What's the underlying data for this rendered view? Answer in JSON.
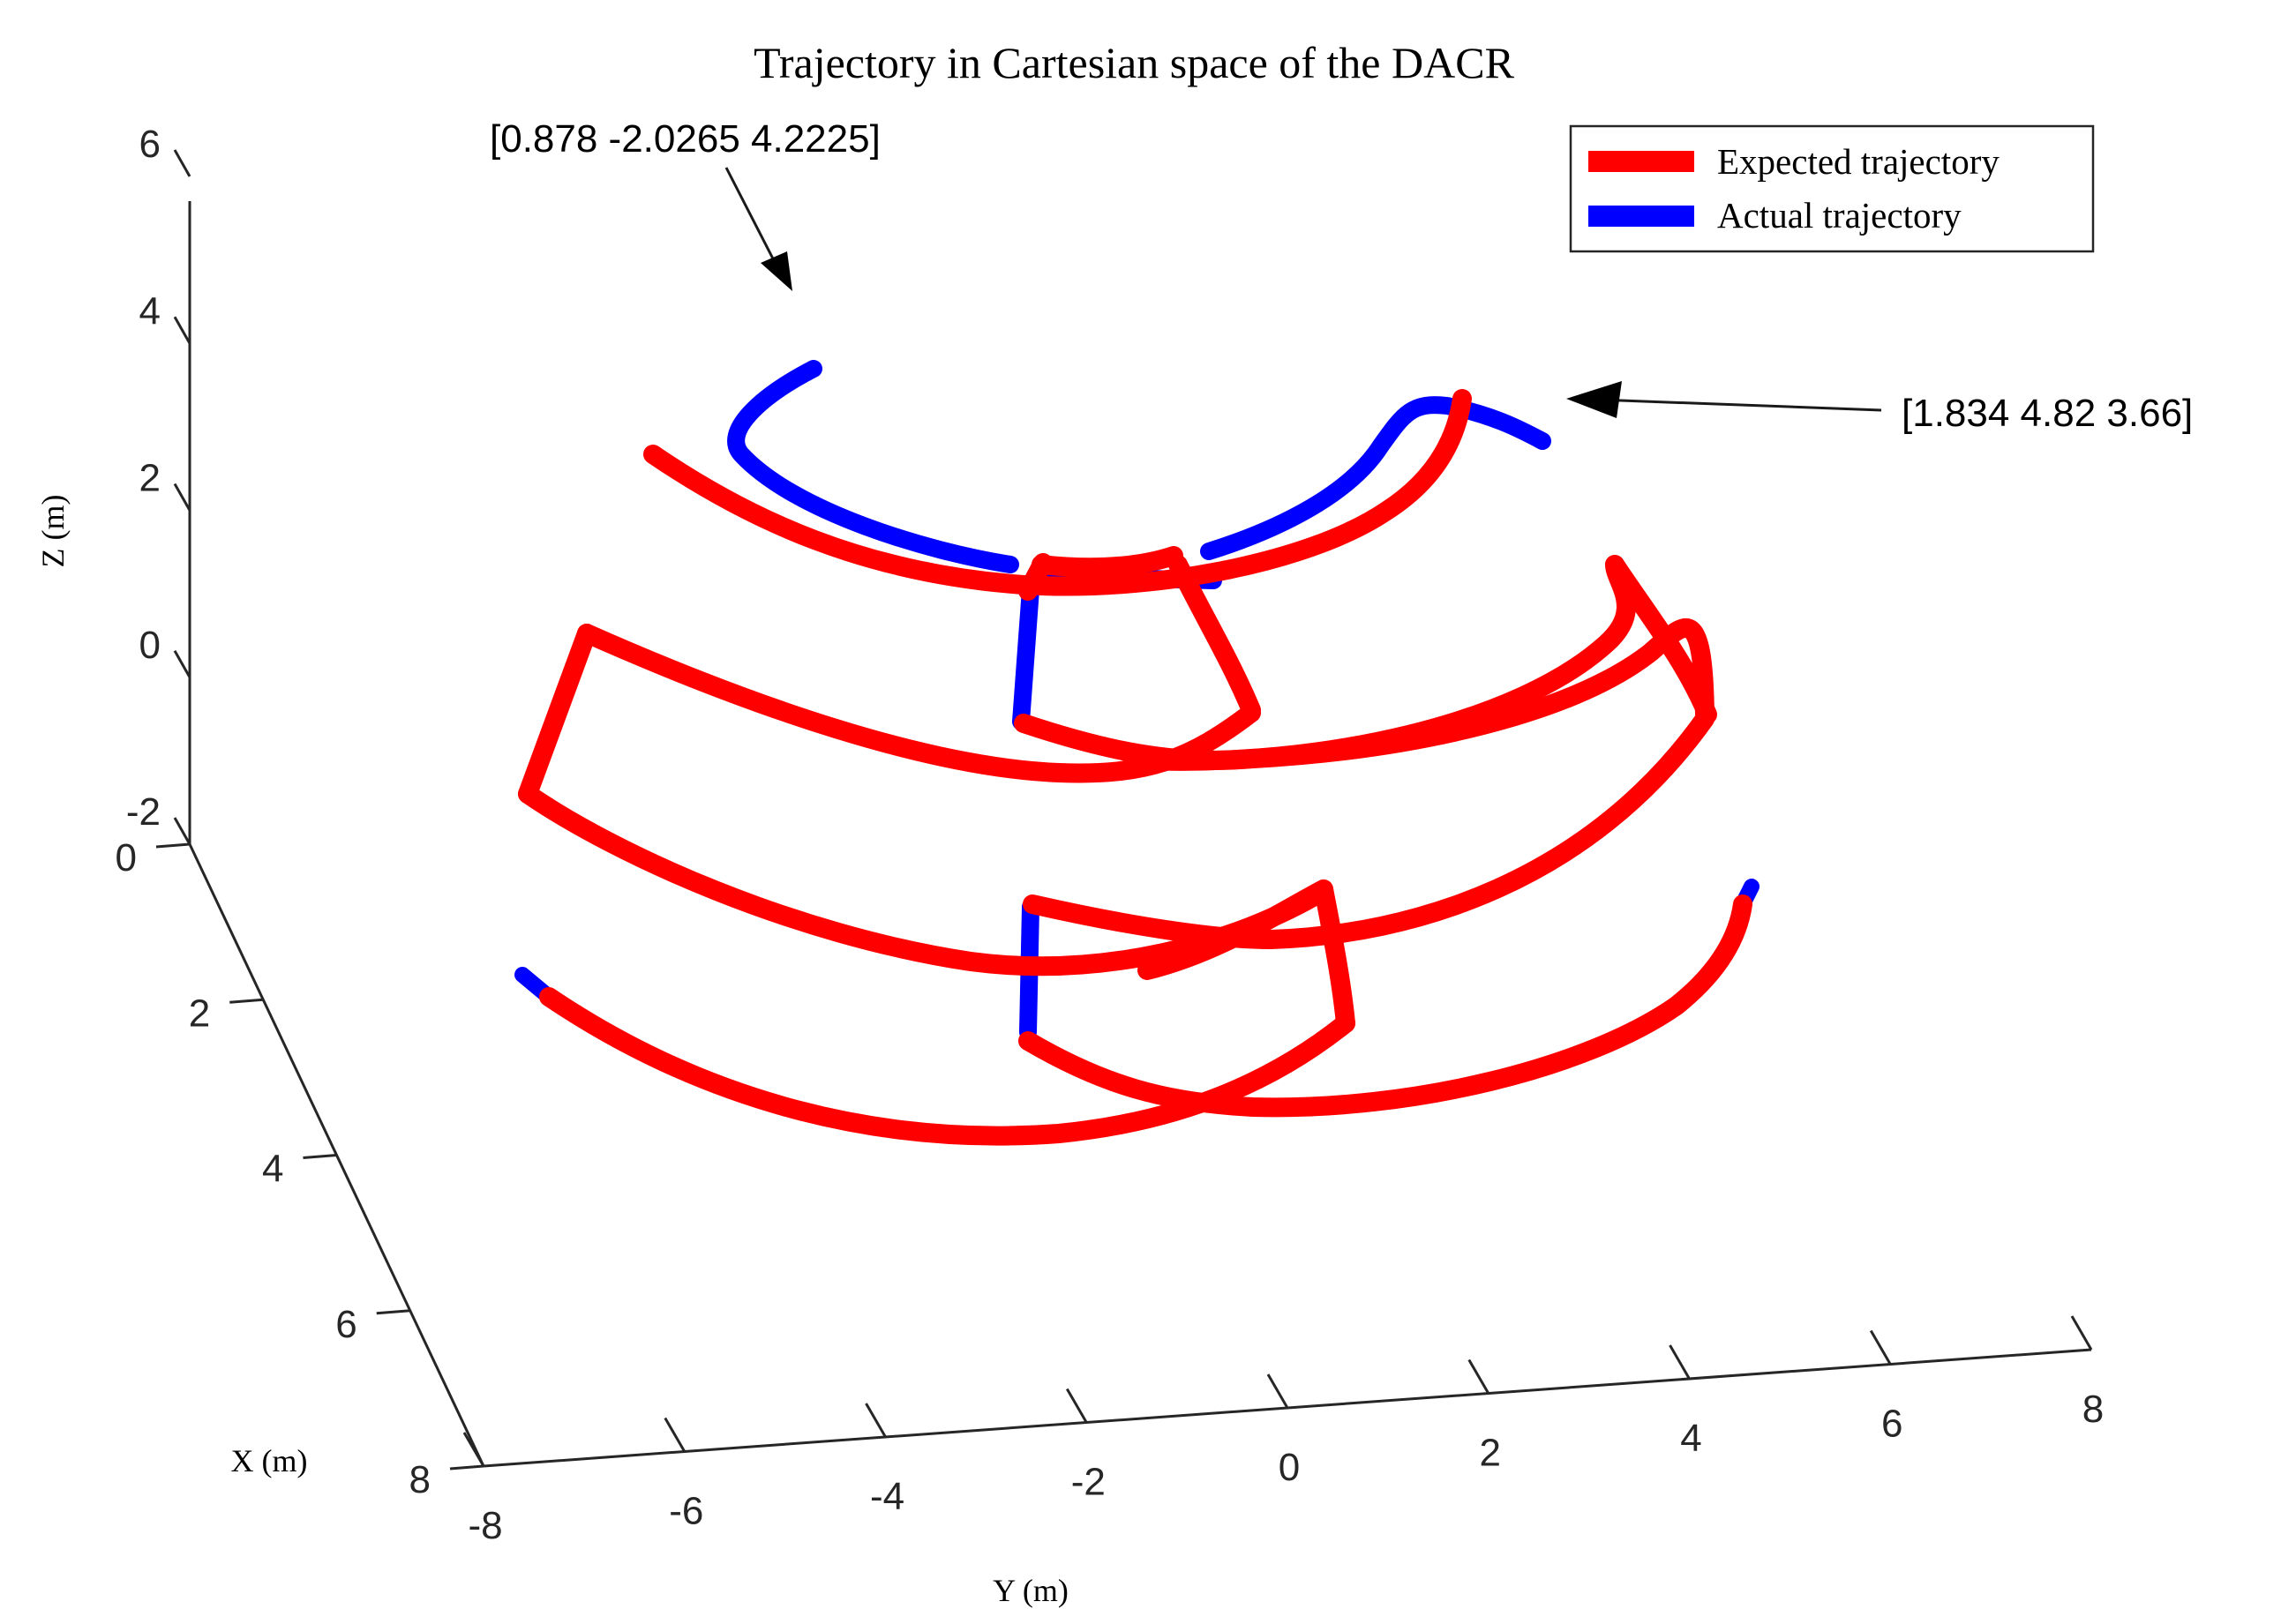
{
  "chart_data": {
    "type": "line",
    "title": "Trajectory in Cartesian space of the DACR",
    "xlabel": "X (m)",
    "ylabel": "Y (m)",
    "zlabel": "Z (m)",
    "x_ticks": [
      "0",
      "2",
      "4",
      "6",
      "8"
    ],
    "y_ticks": [
      "-8",
      "-6",
      "-4",
      "-2",
      "0",
      "2",
      "4",
      "6",
      "8"
    ],
    "z_ticks": [
      "-2",
      "0",
      "2",
      "4",
      "6"
    ],
    "xlim": [
      0,
      8
    ],
    "ylim": [
      -8,
      8
    ],
    "zlim": [
      -2,
      6
    ],
    "grid": false,
    "legend": {
      "position": "top-right",
      "entries": [
        {
          "label": "Expected trajectory",
          "color": "#ff0000"
        },
        {
          "label": "Actual trajectory",
          "color": "#0000ff"
        }
      ]
    },
    "annotations": [
      {
        "text": "[0.878 -2.0265 4.2225]",
        "point": [
          0.878,
          -2.0265,
          4.2225
        ]
      },
      {
        "text": "[1.834 4.82 3.66]",
        "point": [
          1.834,
          4.82,
          3.66
        ]
      }
    ],
    "colors": {
      "expected": "#ff0000",
      "actual": "#0000ff",
      "axis": "#262626"
    }
  }
}
